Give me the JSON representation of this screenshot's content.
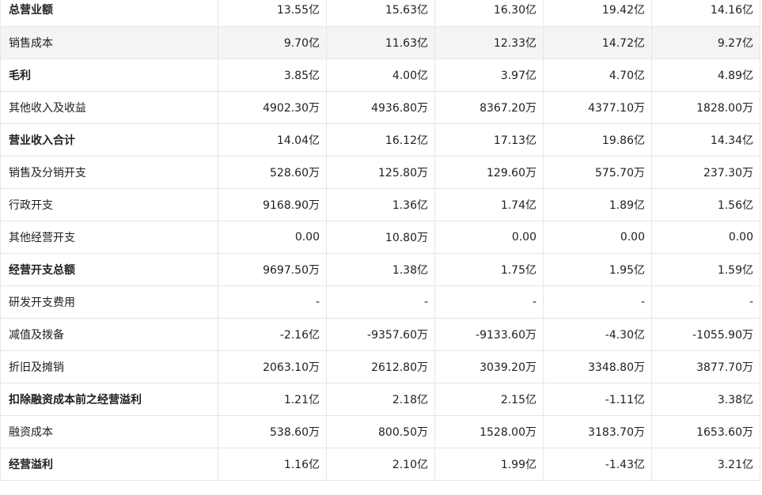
{
  "rows": [
    {
      "label": "总营业额",
      "bold": true,
      "values": [
        "13.55亿",
        "15.63亿",
        "16.30亿",
        "19.42亿",
        "14.16亿"
      ]
    },
    {
      "label": "销售成本",
      "bold": false,
      "shaded": true,
      "values": [
        "9.70亿",
        "11.63亿",
        "12.33亿",
        "14.72亿",
        "9.27亿"
      ]
    },
    {
      "label": "毛利",
      "bold": true,
      "values": [
        "3.85亿",
        "4.00亿",
        "3.97亿",
        "4.70亿",
        "4.89亿"
      ]
    },
    {
      "label": "其他收入及收益",
      "bold": false,
      "values": [
        "4902.30万",
        "4936.80万",
        "8367.20万",
        "4377.10万",
        "1828.00万"
      ]
    },
    {
      "label": "营业收入合计",
      "bold": true,
      "values": [
        "14.04亿",
        "16.12亿",
        "17.13亿",
        "19.86亿",
        "14.34亿"
      ]
    },
    {
      "label": "销售及分销开支",
      "bold": false,
      "values": [
        "528.60万",
        "125.80万",
        "129.60万",
        "575.70万",
        "237.30万"
      ]
    },
    {
      "label": "行政开支",
      "bold": false,
      "values": [
        "9168.90万",
        "1.36亿",
        "1.74亿",
        "1.89亿",
        "1.56亿"
      ]
    },
    {
      "label": "其他经营开支",
      "bold": false,
      "values": [
        "0.00",
        "10.80万",
        "0.00",
        "0.00",
        "0.00"
      ]
    },
    {
      "label": "经营开支总额",
      "bold": true,
      "values": [
        "9697.50万",
        "1.38亿",
        "1.75亿",
        "1.95亿",
        "1.59亿"
      ]
    },
    {
      "label": "研发开支费用",
      "bold": false,
      "values": [
        "-",
        "-",
        "-",
        "-",
        "-"
      ]
    },
    {
      "label": "减值及拨备",
      "bold": false,
      "values": [
        "-2.16亿",
        "-9357.60万",
        "-9133.60万",
        "-4.30亿",
        "-1055.90万"
      ]
    },
    {
      "label": "折旧及摊销",
      "bold": false,
      "values": [
        "2063.10万",
        "2612.80万",
        "3039.20万",
        "3348.80万",
        "3877.70万"
      ]
    },
    {
      "label": "扣除融资成本前之经营溢利",
      "bold": true,
      "values": [
        "1.21亿",
        "2.18亿",
        "2.15亿",
        "-1.11亿",
        "3.38亿"
      ]
    },
    {
      "label": "融资成本",
      "bold": false,
      "values": [
        "538.60万",
        "800.50万",
        "1528.00万",
        "3183.70万",
        "1653.60万"
      ]
    },
    {
      "label": "经营溢利",
      "bold": true,
      "values": [
        "1.16亿",
        "2.10亿",
        "1.99亿",
        "-1.43亿",
        "3.21亿"
      ]
    }
  ]
}
